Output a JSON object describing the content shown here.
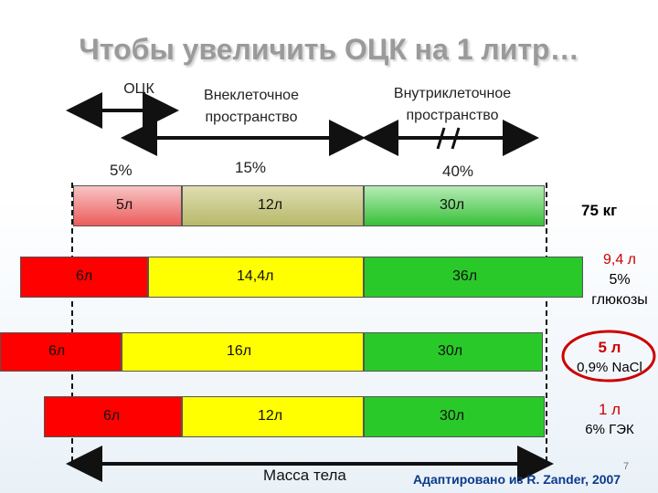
{
  "title": "Чтобы увеличить ОЦК на 1 литр…",
  "headers": {
    "ock": "ОЦК",
    "extracellular": "Внеклеточное пространство",
    "intracellular": "Внутриклеточное пространство"
  },
  "percents": {
    "p5": "5%",
    "p15": "15%",
    "p40": "40%"
  },
  "rows": [
    {
      "a": "5л",
      "b": "12л",
      "c": "30л",
      "side": "75 кг"
    },
    {
      "a": "6л",
      "b": "14,4л",
      "c": "36л",
      "side1": "9,4 л",
      "side2": "5%",
      "side3": "глюкозы"
    },
    {
      "a": "6л",
      "b": "16л",
      "c": "30л",
      "side1": "5 л",
      "side2": "0,9% NaCl"
    },
    {
      "a": "6л",
      "b": "12л",
      "c": "30л",
      "side1": "1 л",
      "side2": "6% ГЭК"
    }
  ],
  "body_mass": "Масса тела",
  "credit": "Адаптировано из R. Zander, 2007",
  "slide_number": "7",
  "colors": {
    "red": "#ff0000",
    "yellow": "#ffff00",
    "green": "#29c929",
    "accent": "#cc0000"
  }
}
